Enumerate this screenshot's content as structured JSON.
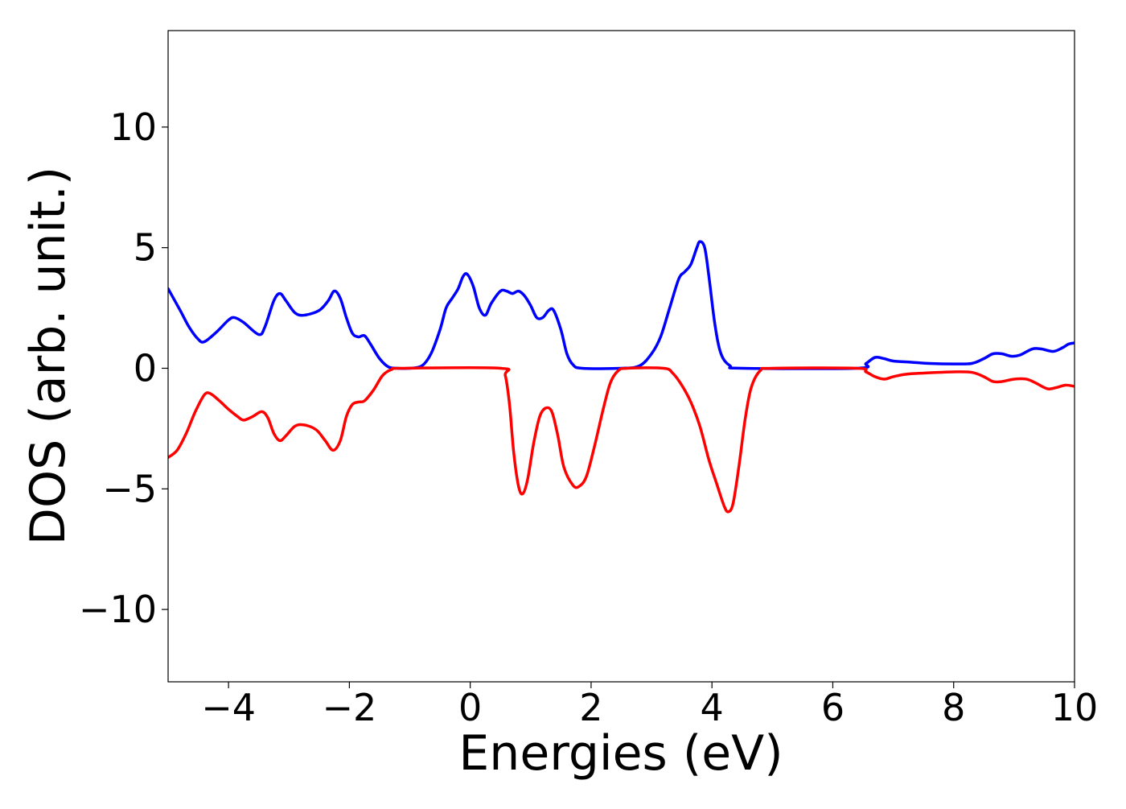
{
  "chart_data": {
    "type": "line",
    "title": "",
    "xlabel": "Energies (eV)",
    "ylabel": "DOS (arb. unit.)",
    "xlim": [
      -5,
      10
    ],
    "ylim": [
      -13,
      14
    ],
    "grid": false,
    "legend": "none",
    "x_ticks": [
      -4,
      -2,
      0,
      2,
      4,
      6,
      8,
      10
    ],
    "x_tick_labels": [
      "−4",
      "−2",
      "0",
      "2",
      "4",
      "6",
      "8",
      "10"
    ],
    "y_ticks": [
      -10,
      -5,
      0,
      5,
      10
    ],
    "y_tick_labels": [
      "−10",
      "−5",
      "0",
      "5",
      "10"
    ],
    "series": [
      {
        "color": "#0000ff",
        "points": [
          [
            -5.0,
            3.3
          ],
          [
            -4.8,
            2.4
          ],
          [
            -4.65,
            1.7
          ],
          [
            -4.5,
            1.2
          ],
          [
            -4.4,
            1.1
          ],
          [
            -4.2,
            1.5
          ],
          [
            -4.0,
            2.0
          ],
          [
            -3.9,
            2.1
          ],
          [
            -3.75,
            1.9
          ],
          [
            -3.5,
            1.4
          ],
          [
            -3.4,
            1.7
          ],
          [
            -3.25,
            2.8
          ],
          [
            -3.15,
            3.1
          ],
          [
            -3.05,
            2.8
          ],
          [
            -2.9,
            2.3
          ],
          [
            -2.75,
            2.2
          ],
          [
            -2.5,
            2.4
          ],
          [
            -2.35,
            2.8
          ],
          [
            -2.25,
            3.2
          ],
          [
            -2.15,
            2.9
          ],
          [
            -2.05,
            2.1
          ],
          [
            -1.95,
            1.45
          ],
          [
            -1.85,
            1.3
          ],
          [
            -1.75,
            1.35
          ],
          [
            -1.65,
            1.0
          ],
          [
            -1.5,
            0.4
          ],
          [
            -1.35,
            0.05
          ],
          [
            -1.2,
            0.0
          ],
          [
            -1.0,
            0.0
          ],
          [
            -0.8,
            0.1
          ],
          [
            -0.65,
            0.6
          ],
          [
            -0.5,
            1.6
          ],
          [
            -0.4,
            2.5
          ],
          [
            -0.3,
            2.9
          ],
          [
            -0.2,
            3.3
          ],
          [
            -0.12,
            3.8
          ],
          [
            -0.05,
            3.9
          ],
          [
            0.05,
            3.4
          ],
          [
            0.15,
            2.5
          ],
          [
            0.25,
            2.2
          ],
          [
            0.35,
            2.7
          ],
          [
            0.5,
            3.2
          ],
          [
            0.6,
            3.2
          ],
          [
            0.7,
            3.1
          ],
          [
            0.8,
            3.2
          ],
          [
            0.9,
            3.0
          ],
          [
            1.0,
            2.6
          ],
          [
            1.1,
            2.1
          ],
          [
            1.2,
            2.1
          ],
          [
            1.3,
            2.4
          ],
          [
            1.38,
            2.4
          ],
          [
            1.5,
            1.6
          ],
          [
            1.6,
            0.6
          ],
          [
            1.7,
            0.15
          ],
          [
            1.85,
            0.0
          ],
          [
            2.5,
            0.0
          ],
          [
            2.8,
            0.1
          ],
          [
            3.0,
            0.6
          ],
          [
            3.15,
            1.3
          ],
          [
            3.3,
            2.5
          ],
          [
            3.45,
            3.7
          ],
          [
            3.55,
            4.0
          ],
          [
            3.65,
            4.3
          ],
          [
            3.75,
            5.0
          ],
          [
            3.8,
            5.25
          ],
          [
            3.88,
            5.0
          ],
          [
            3.95,
            3.8
          ],
          [
            4.05,
            1.8
          ],
          [
            4.15,
            0.6
          ],
          [
            4.3,
            0.1
          ],
          [
            4.5,
            0.0
          ],
          [
            6.4,
            0.0
          ],
          [
            6.55,
            0.2
          ],
          [
            6.7,
            0.45
          ],
          [
            6.85,
            0.4
          ],
          [
            7.0,
            0.3
          ],
          [
            7.3,
            0.25
          ],
          [
            7.6,
            0.2
          ],
          [
            8.0,
            0.18
          ],
          [
            8.3,
            0.2
          ],
          [
            8.5,
            0.4
          ],
          [
            8.65,
            0.6
          ],
          [
            8.8,
            0.6
          ],
          [
            8.95,
            0.5
          ],
          [
            9.1,
            0.55
          ],
          [
            9.3,
            0.8
          ],
          [
            9.45,
            0.8
          ],
          [
            9.65,
            0.7
          ],
          [
            9.8,
            0.85
          ],
          [
            9.9,
            1.0
          ],
          [
            10.0,
            1.05
          ]
        ]
      },
      {
        "color": "#ff0000",
        "points": [
          [
            -5.0,
            -3.7
          ],
          [
            -4.85,
            -3.4
          ],
          [
            -4.7,
            -2.7
          ],
          [
            -4.55,
            -1.8
          ],
          [
            -4.4,
            -1.1
          ],
          [
            -4.3,
            -1.05
          ],
          [
            -4.15,
            -1.35
          ],
          [
            -4.0,
            -1.7
          ],
          [
            -3.85,
            -2.0
          ],
          [
            -3.75,
            -2.15
          ],
          [
            -3.6,
            -2.0
          ],
          [
            -3.45,
            -1.8
          ],
          [
            -3.35,
            -2.05
          ],
          [
            -3.25,
            -2.7
          ],
          [
            -3.15,
            -3.0
          ],
          [
            -3.05,
            -2.8
          ],
          [
            -2.9,
            -2.4
          ],
          [
            -2.75,
            -2.35
          ],
          [
            -2.55,
            -2.55
          ],
          [
            -2.4,
            -3.0
          ],
          [
            -2.27,
            -3.4
          ],
          [
            -2.15,
            -3.0
          ],
          [
            -2.05,
            -2.0
          ],
          [
            -1.95,
            -1.5
          ],
          [
            -1.85,
            -1.4
          ],
          [
            -1.75,
            -1.35
          ],
          [
            -1.6,
            -0.9
          ],
          [
            -1.45,
            -0.3
          ],
          [
            -1.3,
            -0.05
          ],
          [
            -1.1,
            0.0
          ],
          [
            0.5,
            0.0
          ],
          [
            0.58,
            -0.3
          ],
          [
            0.65,
            -1.5
          ],
          [
            0.72,
            -3.5
          ],
          [
            0.8,
            -4.9
          ],
          [
            0.87,
            -5.2
          ],
          [
            0.95,
            -4.6
          ],
          [
            1.05,
            -3.1
          ],
          [
            1.15,
            -2.0
          ],
          [
            1.25,
            -1.65
          ],
          [
            1.35,
            -1.8
          ],
          [
            1.45,
            -2.8
          ],
          [
            1.55,
            -4.1
          ],
          [
            1.7,
            -4.85
          ],
          [
            1.8,
            -4.9
          ],
          [
            1.92,
            -4.5
          ],
          [
            2.05,
            -3.3
          ],
          [
            2.2,
            -1.7
          ],
          [
            2.32,
            -0.6
          ],
          [
            2.45,
            -0.1
          ],
          [
            2.6,
            0.0
          ],
          [
            3.2,
            0.0
          ],
          [
            3.35,
            -0.2
          ],
          [
            3.5,
            -0.7
          ],
          [
            3.65,
            -1.4
          ],
          [
            3.8,
            -2.4
          ],
          [
            3.95,
            -3.8
          ],
          [
            4.08,
            -4.8
          ],
          [
            4.2,
            -5.7
          ],
          [
            4.27,
            -5.95
          ],
          [
            4.35,
            -5.6
          ],
          [
            4.45,
            -4.0
          ],
          [
            4.55,
            -2.1
          ],
          [
            4.65,
            -0.8
          ],
          [
            4.8,
            -0.1
          ],
          [
            5.0,
            0.0
          ],
          [
            6.4,
            0.0
          ],
          [
            6.55,
            -0.15
          ],
          [
            6.7,
            -0.35
          ],
          [
            6.85,
            -0.45
          ],
          [
            7.0,
            -0.35
          ],
          [
            7.2,
            -0.25
          ],
          [
            7.5,
            -0.2
          ],
          [
            8.0,
            -0.15
          ],
          [
            8.3,
            -0.17
          ],
          [
            8.5,
            -0.35
          ],
          [
            8.65,
            -0.55
          ],
          [
            8.8,
            -0.55
          ],
          [
            9.0,
            -0.45
          ],
          [
            9.2,
            -0.45
          ],
          [
            9.35,
            -0.6
          ],
          [
            9.55,
            -0.85
          ],
          [
            9.7,
            -0.8
          ],
          [
            9.85,
            -0.7
          ],
          [
            10.0,
            -0.75
          ]
        ]
      }
    ]
  }
}
